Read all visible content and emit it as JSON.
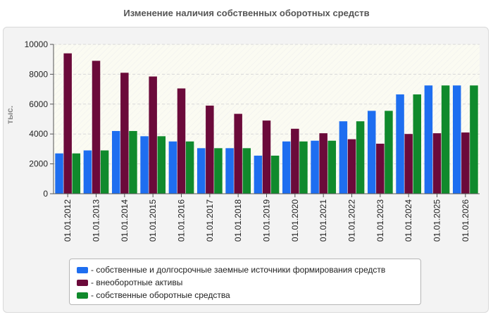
{
  "title": "Изменение наличия собственных оборотных средств",
  "legend": [
    {
      "label": "- собственные и долгосрочные заемные источники формирования средств",
      "color": "#1e6ef0"
    },
    {
      "label": "- внеоборотные активы",
      "color": "#6b0a3a"
    },
    {
      "label": "- собственные оборотные средства",
      "color": "#108a2c"
    }
  ],
  "chart_data": {
    "type": "bar",
    "title": "Изменение наличия собственных оборотных средств",
    "xlabel": "",
    "ylabel": "тыс.",
    "ylim": [
      0,
      10000
    ],
    "yticks": [
      "0",
      "2000",
      "4000",
      "6000",
      "8000",
      "10000"
    ],
    "grid": true,
    "legend_position": "bottom",
    "categories": [
      "01.01.2012",
      "01.01.2013",
      "01.01.2014",
      "01.01.2015",
      "01.01.2016",
      "01.01.2017",
      "01.01.2018",
      "01.01.2019",
      "01.01.2020",
      "01.01.2021",
      "01.01.2022",
      "01.01.2023",
      "01.01.2024",
      "01.01.2025",
      "01.01.2026"
    ],
    "series": [
      {
        "name": "- собственные и долгосрочные заемные источники формирования средств",
        "color": "#1e6ef0",
        "values": [
          2700,
          2900,
          4200,
          3850,
          3500,
          3050,
          3050,
          2550,
          3500,
          3550,
          4850,
          5550,
          6650,
          7250,
          7250
        ]
      },
      {
        "name": "- внеоборотные активы",
        "color": "#6b0a3a",
        "values": [
          9400,
          8900,
          8100,
          7850,
          7050,
          5900,
          5350,
          4900,
          4350,
          4050,
          3650,
          3350,
          4000,
          4050,
          4100
        ]
      },
      {
        "name": "- собственные оборотные средства",
        "color": "#108a2c",
        "values": [
          2700,
          2900,
          4200,
          3850,
          3500,
          3050,
          3050,
          2550,
          3500,
          3550,
          4850,
          5550,
          6650,
          7250,
          7250
        ]
      }
    ]
  }
}
